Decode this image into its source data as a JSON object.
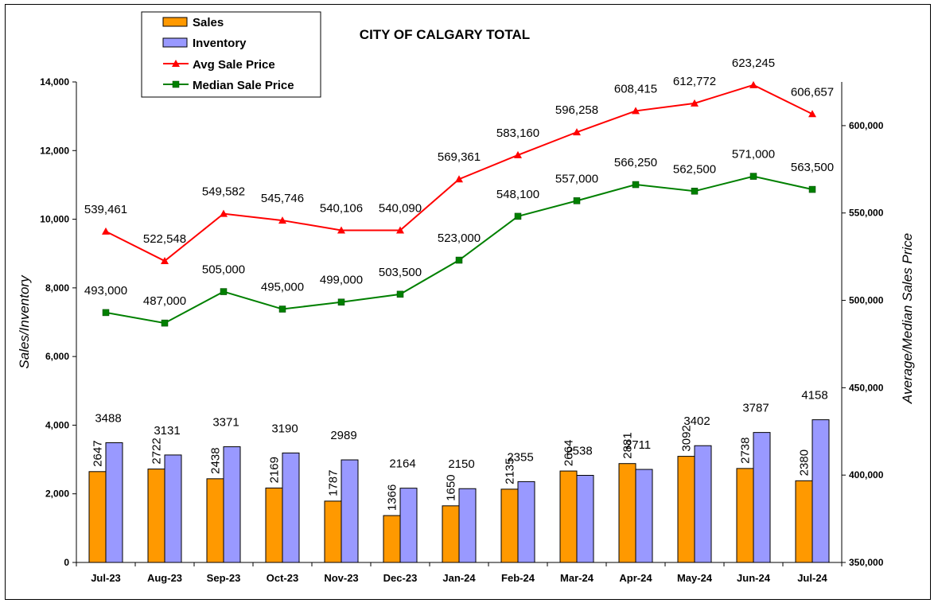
{
  "chart_data": {
    "type": "bar",
    "title": "CITY OF CALGARY TOTAL",
    "ylabel_left": "Sales/Inventory",
    "ylabel_right": "Average/Median Sales Price",
    "ylim_left": [
      0,
      14000
    ],
    "ylim_right": [
      350000,
      625000
    ],
    "yticks_left": [
      "0",
      "2,000",
      "4,000",
      "6,000",
      "8,000",
      "10,000",
      "12,000",
      "14,000"
    ],
    "yticks_right": [
      "350,000",
      "400,000",
      "450,000",
      "500,000",
      "550,000",
      "600,000"
    ],
    "categories": [
      "Jul-23",
      "Aug-23",
      "Sep-23",
      "Oct-23",
      "Nov-23",
      "Dec-23",
      "Jan-24",
      "Feb-24",
      "Mar-24",
      "Apr-24",
      "May-24",
      "Jun-24",
      "Jul-24"
    ],
    "legend_position": "top-left",
    "series": [
      {
        "name": "Sales",
        "type": "bar",
        "axis": "left",
        "color": "#FF9900",
        "values": [
          2647,
          2722,
          2438,
          2169,
          1787,
          1366,
          1650,
          2135,
          2664,
          2881,
          3092,
          2738,
          2380
        ],
        "labels": [
          "2647",
          "2722",
          "2438",
          "2169",
          "1787",
          "1366",
          "1650",
          "2135",
          "2664",
          "2881",
          "3092",
          "2738",
          "2380"
        ]
      },
      {
        "name": "Inventory",
        "type": "bar",
        "axis": "left",
        "color": "#9999FF",
        "values": [
          3488,
          3131,
          3371,
          3190,
          2989,
          2164,
          2150,
          2355,
          2538,
          2711,
          3402,
          3787,
          4158
        ],
        "labels": [
          "3488",
          "3131",
          "3371",
          "3190",
          "2989",
          "2164",
          "2150",
          "2355",
          "2538",
          "2711",
          "3402",
          "3787",
          "4158"
        ]
      },
      {
        "name": "Avg Sale Price",
        "type": "line",
        "axis": "right",
        "color": "#FF0000",
        "marker": "triangle",
        "values": [
          539461,
          522548,
          549582,
          545746,
          540106,
          540090,
          569361,
          583160,
          596258,
          608415,
          612772,
          623245,
          606657
        ],
        "labels": [
          "539,461",
          "522,548",
          "549,582",
          "545,746",
          "540,106",
          "540,090",
          "569,361",
          "583,160",
          "596,258",
          "608,415",
          "612,772",
          "623,245",
          "606,657"
        ]
      },
      {
        "name": "Median Sale Price",
        "type": "line",
        "axis": "right",
        "color": "#008000",
        "marker": "square",
        "values": [
          493000,
          487000,
          505000,
          495000,
          499000,
          503500,
          523000,
          548100,
          557000,
          566250,
          562500,
          571000,
          563500
        ],
        "labels": [
          "493,000",
          "487,000",
          "505,000",
          "495,000",
          "499,000",
          "503,500",
          "523,000",
          "548,100",
          "557,000",
          "566,250",
          "562,500",
          "571,000",
          "563,500"
        ]
      }
    ]
  }
}
